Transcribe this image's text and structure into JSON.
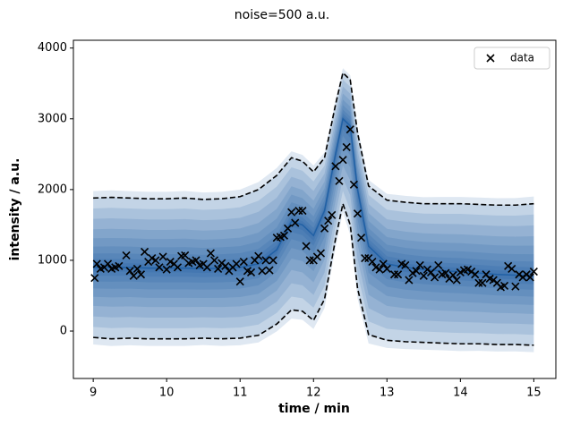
{
  "chart_data": {
    "type": "scatter",
    "title": "noise=500 a.u.",
    "xlabel": "time / min",
    "ylabel": "intensity / a.u.",
    "xlim": [
      8.73,
      15.3
    ],
    "ylim": [
      -670,
      4110
    ],
    "xticks": [
      9,
      10,
      11,
      12,
      13,
      14,
      15
    ],
    "yticks": [
      0,
      1000,
      2000,
      3000,
      4000
    ],
    "legend": "upper right",
    "series": [
      {
        "name": "data",
        "color": "#000000",
        "x": [
          9.02,
          9.05,
          9.1,
          9.15,
          9.2,
          9.25,
          9.3,
          9.35,
          9.45,
          9.5,
          9.55,
          9.6,
          9.65,
          9.7,
          9.75,
          9.8,
          9.85,
          9.9,
          9.95,
          10,
          10.05,
          10.1,
          10.15,
          10.2,
          10.25,
          10.3,
          10.35,
          10.4,
          10.45,
          10.5,
          10.55,
          10.6,
          10.65,
          10.7,
          10.75,
          10.8,
          10.85,
          10.9,
          10.95,
          11,
          11.05,
          11.1,
          11.15,
          11.2,
          11.25,
          11.3,
          11.35,
          11.4,
          11.45,
          11.5,
          11.55,
          11.6,
          11.65,
          11.7,
          11.75,
          11.8,
          11.85,
          11.9,
          11.95,
          12,
          12.05,
          12.1,
          12.15,
          12.2,
          12.25,
          12.3,
          12.35,
          12.4,
          12.45,
          12.5,
          12.55,
          12.6,
          12.65,
          12.7,
          12.75,
          12.8,
          12.85,
          12.9,
          12.95,
          13,
          13.1,
          13.15,
          13.2,
          13.25,
          13.3,
          13.35,
          13.4,
          13.45,
          13.5,
          13.55,
          13.6,
          13.65,
          13.7,
          13.75,
          13.8,
          13.85,
          13.9,
          13.95,
          14,
          14.05,
          14.1,
          14.15,
          14.2,
          14.25,
          14.3,
          14.35,
          14.4,
          14.45,
          14.5,
          14.55,
          14.6,
          14.65,
          14.7,
          14.75,
          14.8,
          14.85,
          14.9,
          14.95,
          15
        ],
        "values": [
          750,
          950,
          880,
          900,
          950,
          880,
          900,
          920,
          1070,
          850,
          780,
          880,
          800,
          1120,
          980,
          1030,
          1000,
          900,
          1050,
          870,
          980,
          950,
          900,
          1060,
          1070,
          960,
          980,
          1000,
          930,
          950,
          900,
          1100,
          1000,
          880,
          960,
          920,
          850,
          900,
          950,
          700,
          980,
          850,
          830,
          1000,
          1060,
          850,
          1000,
          860,
          1000,
          1320,
          1330,
          1350,
          1450,
          1680,
          1530,
          1700,
          1700,
          1200,
          1000,
          1000,
          1050,
          1100,
          1450,
          1560,
          1640,
          2330,
          2120,
          2420,
          2600,
          2850,
          2070,
          1660,
          1320,
          1030,
          1030,
          980,
          900,
          870,
          950,
          880,
          800,
          800,
          950,
          930,
          720,
          820,
          850,
          930,
          780,
          870,
          830,
          760,
          930,
          800,
          820,
          740,
          790,
          720,
          830,
          860,
          870,
          840,
          800,
          680,
          680,
          800,
          740,
          720,
          680,
          620,
          640,
          920,
          880,
          630,
          800,
          760,
          800,
          760,
          840
        ]
      }
    ],
    "bands": {
      "color": "#08519c",
      "x": [
        9,
        9.25,
        9.5,
        9.75,
        10,
        10.25,
        10.5,
        10.75,
        11,
        11.25,
        11.5,
        11.7,
        11.85,
        12,
        12.15,
        12.3,
        12.4,
        12.5,
        12.6,
        12.75,
        13,
        13.25,
        13.5,
        13.75,
        14,
        14.25,
        14.5,
        14.75,
        15
      ],
      "upper": [
        1880,
        1890,
        1880,
        1870,
        1870,
        1880,
        1860,
        1870,
        1900,
        2000,
        2200,
        2450,
        2400,
        2250,
        2450,
        3200,
        3650,
        3550,
        2800,
        2050,
        1850,
        1820,
        1800,
        1800,
        1800,
        1790,
        1780,
        1780,
        1800
      ],
      "median": [
        900,
        900,
        900,
        890,
        890,
        890,
        880,
        890,
        900,
        950,
        1150,
        1550,
        1500,
        1350,
        1700,
        2500,
        3000,
        2900,
        2000,
        1200,
        950,
        900,
        870,
        850,
        840,
        820,
        800,
        790,
        780
      ],
      "lower": [
        -90,
        -110,
        -100,
        -110,
        -110,
        -110,
        -100,
        -110,
        -100,
        -60,
        100,
        300,
        280,
        150,
        450,
        1300,
        1800,
        1500,
        600,
        -50,
        -130,
        -150,
        -160,
        -170,
        -180,
        -180,
        -190,
        -190,
        -200
      ]
    }
  }
}
